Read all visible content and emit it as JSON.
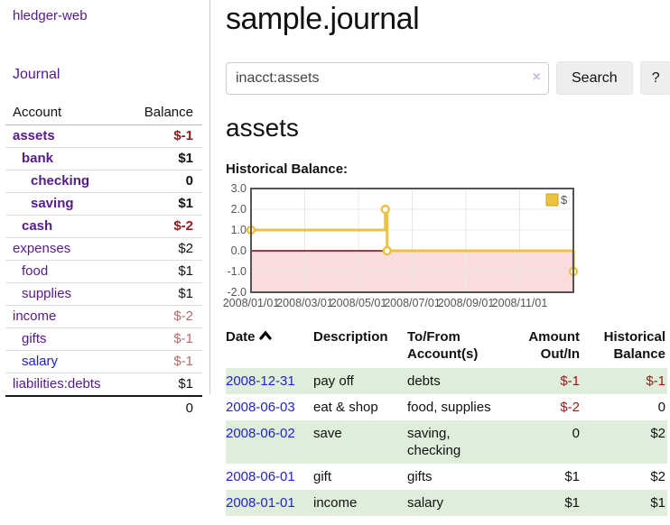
{
  "app": {
    "title": "hledger-web"
  },
  "sidebar": {
    "journal_link": "Journal",
    "accounts_table": {
      "col_account": "Account",
      "col_balance": "Balance",
      "rows": [
        {
          "name": "assets",
          "depth": 0,
          "bold": true,
          "link_color": "purple",
          "balance": "$-1",
          "balance_class": "neg-strong"
        },
        {
          "name": "bank",
          "depth": 1,
          "bold": true,
          "link_color": "purple",
          "balance": "$1",
          "balance_class": "pos-strong"
        },
        {
          "name": "checking",
          "depth": 2,
          "bold": true,
          "link_color": "purple",
          "balance": "0",
          "balance_class": "pos-strong"
        },
        {
          "name": "saving",
          "depth": 2,
          "bold": true,
          "link_color": "purple",
          "balance": "$1",
          "balance_class": "pos-strong"
        },
        {
          "name": "cash",
          "depth": 1,
          "bold": true,
          "link_color": "purple",
          "balance": "$-2",
          "balance_class": "neg-strong"
        },
        {
          "name": "expenses",
          "depth": 0,
          "bold": false,
          "link_color": "purple",
          "balance": "$2",
          "balance_class": "pos"
        },
        {
          "name": "food",
          "depth": 1,
          "bold": false,
          "link_color": "purple",
          "balance": "$1",
          "balance_class": "pos"
        },
        {
          "name": "supplies",
          "depth": 1,
          "bold": false,
          "link_color": "purple",
          "balance": "$1",
          "balance_class": "pos"
        },
        {
          "name": "income",
          "depth": 0,
          "bold": false,
          "link_color": "purple",
          "balance": "$-2",
          "balance_class": "neg-muted"
        },
        {
          "name": "gifts",
          "depth": 1,
          "bold": false,
          "link_color": "purple",
          "balance": "$-1",
          "balance_class": "neg-muted"
        },
        {
          "name": "salary",
          "depth": 1,
          "bold": false,
          "link_color": "blue",
          "balance": "$-1",
          "balance_class": "neg-muted"
        },
        {
          "name": "liabilities:debts",
          "depth": 0,
          "bold": false,
          "link_color": "purple",
          "balance": "$1",
          "balance_class": "pos"
        }
      ],
      "total": "0"
    }
  },
  "main": {
    "title": "sample.journal",
    "search": {
      "value": "inacct:assets",
      "clear_icon": "×",
      "button_label": "Search",
      "help_label": "?"
    },
    "account_heading": "assets",
    "chart_title": "Historical Balance:"
  },
  "chart_data": {
    "type": "line",
    "step": "after",
    "title": "Historical Balance:",
    "legend": [
      {
        "label": "$",
        "color": "#edc240"
      }
    ],
    "legend_position": "top-right",
    "points": [
      {
        "date": "2008-01-01",
        "value": 1
      },
      {
        "date": "2008-06-01",
        "value": 2
      },
      {
        "date": "2008-06-03",
        "value": 0
      },
      {
        "date": "2008-12-31",
        "value": -1
      }
    ],
    "ylim": [
      -2,
      3
    ],
    "yticks": [
      "3.0",
      "2.0",
      "1.0",
      "0.0",
      "-1.0",
      "-2.0"
    ],
    "ytick_values": [
      3,
      2,
      1,
      0,
      -1,
      -2
    ],
    "xtick_labels": [
      "2008/01/01",
      "2008/03/01",
      "2008/05/01",
      "2008/07/01",
      "2008/09/01",
      "2008/11/01"
    ],
    "xtick_months": [
      0,
      2,
      4,
      6,
      8,
      10
    ],
    "xlim_months": [
      0,
      12
    ],
    "grid": true,
    "negative_region_fill": "#fbdcdc",
    "zero_line_color": "#8b0000",
    "series_color": "#edc240",
    "grid_color": "#e8e8e8",
    "border_color": "#545454",
    "tick_color": "#545454"
  },
  "table": {
    "headers": [
      {
        "line1": "Date",
        "line2": "",
        "align": "l",
        "sorted": true
      },
      {
        "line1": "Description",
        "line2": "",
        "align": "l",
        "sorted": false
      },
      {
        "line1": "To/From",
        "line2": "Account(s)",
        "align": "l",
        "sorted": false
      },
      {
        "line1": "Amount",
        "line2": "Out/In",
        "align": "r",
        "sorted": false
      },
      {
        "line1": "Historical",
        "line2": "Balance",
        "align": "r",
        "sorted": false
      }
    ],
    "rows": [
      {
        "date": "2008-12-31",
        "description": "pay off",
        "accounts": "debts",
        "amount": "$-1",
        "amount_neg": true,
        "balance": "$-1",
        "balance_neg": true,
        "shaded": true
      },
      {
        "date": "2008-06-03",
        "description": "eat & shop",
        "accounts": "food, supplies",
        "amount": "$-2",
        "amount_neg": true,
        "balance": "0",
        "balance_neg": false,
        "shaded": false
      },
      {
        "date": "2008-06-02",
        "description": "save",
        "accounts": "saving, checking",
        "amount": "0",
        "amount_neg": false,
        "balance": "$2",
        "balance_neg": false,
        "shaded": true
      },
      {
        "date": "2008-06-01",
        "description": "gift",
        "accounts": "gifts",
        "amount": "$1",
        "amount_neg": false,
        "balance": "$2",
        "balance_neg": false,
        "shaded": false
      },
      {
        "date": "2008-01-01",
        "description": "income",
        "accounts": "salary",
        "amount": "$1",
        "amount_neg": false,
        "balance": "$1",
        "balance_neg": false,
        "shaded": true
      }
    ]
  }
}
